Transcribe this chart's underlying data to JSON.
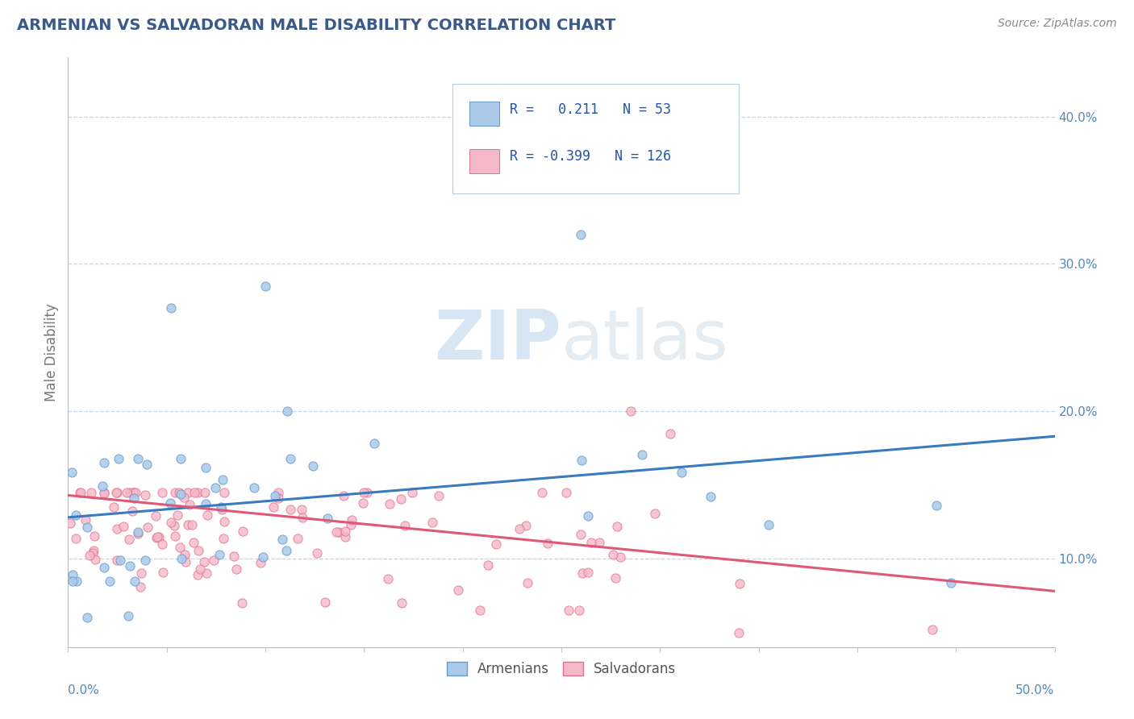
{
  "title": "ARMENIAN VS SALVADORAN MALE DISABILITY CORRELATION CHART",
  "source": "Source: ZipAtlas.com",
  "ylabel": "Male Disability",
  "ytick_vals": [
    0.1,
    0.2,
    0.3,
    0.4
  ],
  "ytick_labels": [
    "10.0%",
    "20.0%",
    "30.0%",
    "40.0%"
  ],
  "xlim": [
    0.0,
    0.5
  ],
  "ylim": [
    0.04,
    0.44
  ],
  "armenian_R": 0.211,
  "armenian_N": 53,
  "salvadoran_R": -0.399,
  "salvadoran_N": 126,
  "armenian_scatter_color": "#aac9e8",
  "armenian_edge_color": "#6699cc",
  "salvadoran_scatter_color": "#f5b8c8",
  "salvadoran_edge_color": "#e07090",
  "armenian_line_color": "#3a7abf",
  "salvadoran_line_color": "#e05878",
  "legend_text_color": "#2255aa",
  "title_color": "#3a5a8a",
  "source_color": "#888888",
  "watermark_color": "#d8e8f0",
  "background_color": "#ffffff",
  "grid_color": "#c0d8ee",
  "axis_color": "#bbbbbb",
  "tick_label_color": "#5588bb",
  "arm_line_y0": 0.128,
  "arm_line_y1": 0.183,
  "sal_line_y0": 0.143,
  "sal_line_y1": 0.078
}
